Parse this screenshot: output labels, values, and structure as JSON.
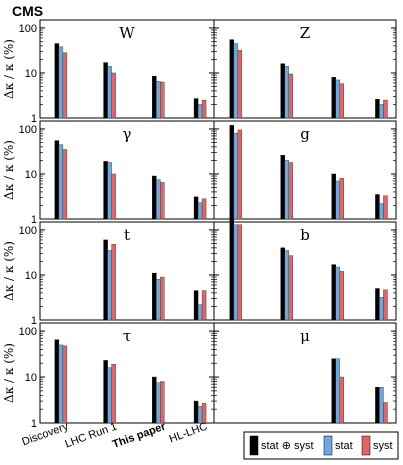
{
  "chart_data": {
    "type": "bar",
    "title": "CMS",
    "ylabel": "Δκ / κ (%)",
    "yscale": "log",
    "ylim": [
      1,
      150
    ],
    "yticks": [
      "1",
      "10",
      "100"
    ],
    "categories": [
      "Discovery",
      "LHC Run 1",
      "This paper",
      "HL-LHC"
    ],
    "legend": {
      "placement": "bottom-right",
      "entries": [
        "stat ⊕ syst",
        "stat",
        "syst"
      ]
    },
    "series_colors": {
      "stat ⊕ syst": "#000000",
      "stat": "#6fa8dc",
      "syst": "#e06666"
    },
    "panels": [
      {
        "label": "W",
        "values": [
          {
            "category": "Discovery",
            "total": 45,
            "stat": 38,
            "syst": 28
          },
          {
            "category": "LHC Run 1",
            "total": 17,
            "stat": 14,
            "syst": 10
          },
          {
            "category": "This paper",
            "total": 8.5,
            "stat": 6.5,
            "syst": 6.3
          },
          {
            "category": "HL-LHC",
            "total": 2.7,
            "stat": 2.0,
            "syst": 2.5
          }
        ]
      },
      {
        "label": "Z",
        "values": [
          {
            "category": "Discovery",
            "total": 55,
            "stat": 45,
            "syst": 32
          },
          {
            "category": "LHC Run 1",
            "total": 16,
            "stat": 14,
            "syst": 9.5
          },
          {
            "category": "This paper",
            "total": 8,
            "stat": 7,
            "syst": 5.8
          },
          {
            "category": "HL-LHC",
            "total": 2.6,
            "stat": 2.0,
            "syst": 2.5
          }
        ]
      },
      {
        "label": "γ",
        "values": [
          {
            "category": "Discovery",
            "total": 55,
            "stat": 45,
            "syst": 35
          },
          {
            "category": "LHC Run 1",
            "total": 19,
            "stat": 18,
            "syst": 10
          },
          {
            "category": "This paper",
            "total": 9,
            "stat": 7.5,
            "syst": 6.5
          },
          {
            "category": "HL-LHC",
            "total": 3.1,
            "stat": 2.3,
            "syst": 2.8
          }
        ]
      },
      {
        "label": "g",
        "values": [
          {
            "category": "Discovery",
            "total": 120,
            "stat": 80,
            "syst": 95
          },
          {
            "category": "LHC Run 1",
            "total": 26,
            "stat": 20,
            "syst": 18
          },
          {
            "category": "This paper",
            "total": 10,
            "stat": 7,
            "syst": 8
          },
          {
            "category": "HL-LHC",
            "total": 3.5,
            "stat": 2.2,
            "syst": 3.3
          }
        ]
      },
      {
        "label": "t",
        "values": [
          {
            "category": "Discovery",
            "total": null,
            "stat": null,
            "syst": null
          },
          {
            "category": "LHC Run 1",
            "total": 60,
            "stat": 35,
            "syst": 48
          },
          {
            "category": "This paper",
            "total": 11,
            "stat": 8,
            "syst": 9
          },
          {
            "category": "HL-LHC",
            "total": 4.5,
            "stat": 2.2,
            "syst": 4.5
          }
        ]
      },
      {
        "label": "b",
        "values": [
          {
            "category": "Discovery",
            "total": 180,
            "stat": 130,
            "syst": 130
          },
          {
            "category": "LHC Run 1",
            "total": 40,
            "stat": 35,
            "syst": 27
          },
          {
            "category": "This paper",
            "total": 17,
            "stat": 15,
            "syst": 12
          },
          {
            "category": "HL-LHC",
            "total": 5,
            "stat": 3.2,
            "syst": 4.7
          }
        ]
      },
      {
        "label": "τ",
        "values": [
          {
            "category": "Discovery",
            "total": 65,
            "stat": 50,
            "syst": 48
          },
          {
            "category": "LHC Run 1",
            "total": 23,
            "stat": 16,
            "syst": 19
          },
          {
            "category": "This paper",
            "total": 10,
            "stat": 7.5,
            "syst": 8
          },
          {
            "category": "HL-LHC",
            "total": 3,
            "stat": 2.3,
            "syst": 2.7
          }
        ]
      },
      {
        "label": "μ",
        "values": [
          {
            "category": "Discovery",
            "total": null,
            "stat": null,
            "syst": null
          },
          {
            "category": "LHC Run 1",
            "total": null,
            "stat": null,
            "syst": null
          },
          {
            "category": "This paper",
            "total": 25,
            "stat": 25,
            "syst": 10
          },
          {
            "category": "HL-LHC",
            "total": 6,
            "stat": 6,
            "syst": 2.8
          }
        ]
      }
    ]
  }
}
